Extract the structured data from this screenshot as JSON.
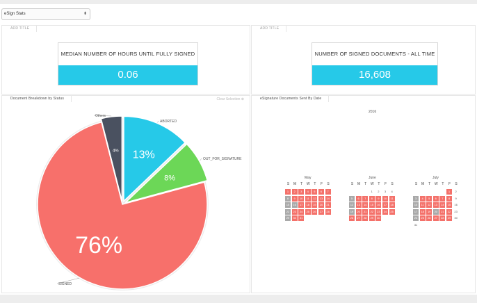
{
  "selector": {
    "value": "eSign Stats"
  },
  "panels": {
    "kpi_left": {
      "tab": "ADD TITLE",
      "label": "MEDIAN NUMBER OF HOURS UNTIL FULLY SIGNED",
      "value": "0.06",
      "accent": "#26c9e8"
    },
    "kpi_right": {
      "tab": "ADD TITLE",
      "label": "NUMBER OF SIGNED DOCUMENTS - ALL TIME",
      "value": "16,608",
      "accent": "#26c9e8"
    },
    "pie": {
      "tab": "Document Breakdown by Status",
      "clear_selection": "Clear Selection"
    },
    "calendar": {
      "tab": "eSignature Documents Sent By Date",
      "year": "2016"
    }
  },
  "chart_data": {
    "type": "pie",
    "slices": [
      {
        "name": "ABORTED",
        "value": 13,
        "label": "13%",
        "color": "#26c9e8"
      },
      {
        "name": "OUT_FOR_SIGNATURE",
        "value": 8,
        "label": "8%",
        "color": "#6cd757"
      },
      {
        "name": "SIGNED",
        "value": 76,
        "label": "76%",
        "color": "#f7706b"
      },
      {
        "name": "Others",
        "value": 4,
        "label": "4%",
        "color": "#4a5160"
      }
    ]
  },
  "calendar": {
    "dow": [
      "S",
      "M",
      "T",
      "W",
      "T",
      "F",
      "S"
    ],
    "months": [
      {
        "name": "May",
        "start_dow": 0,
        "days": 31,
        "status": {
          "1": "s",
          "2": "s",
          "3": "s",
          "4": "s",
          "5": "s",
          "6": "s",
          "7": "s",
          "8": "g",
          "9": "s",
          "10": "s",
          "11": "s",
          "12": "s",
          "13": "s",
          "14": "s",
          "15": "g",
          "16": "g",
          "17": "s",
          "18": "s",
          "19": "s",
          "20": "s",
          "21": "s",
          "22": "g",
          "23": "s",
          "24": "s",
          "25": "s",
          "26": "s",
          "27": "s",
          "28": "s",
          "29": "g",
          "30": "s",
          "31": "s"
        }
      },
      {
        "name": "June",
        "start_dow": 3,
        "days": 30,
        "status": {
          "5": "g",
          "6": "s",
          "7": "s",
          "8": "s",
          "9": "s",
          "10": "s",
          "11": "s",
          "12": "g",
          "13": "s",
          "14": "s",
          "15": "s",
          "16": "s",
          "17": "s",
          "18": "s",
          "19": "g",
          "20": "s",
          "21": "s",
          "22": "s",
          "23": "s",
          "24": "s",
          "25": "s",
          "26": "s",
          "27": "s",
          "28": "s",
          "29": "s",
          "30": "s"
        }
      },
      {
        "name": "July",
        "start_dow": 5,
        "days": 31,
        "status": {
          "1": "s",
          "3": "g",
          "4": "s",
          "5": "s",
          "6": "s",
          "7": "s",
          "8": "s",
          "10": "g",
          "11": "s",
          "12": "s",
          "13": "s",
          "14": "s",
          "15": "s",
          "17": "g",
          "18": "s",
          "19": "s",
          "20": "g",
          "21": "s",
          "22": "s",
          "24": "g",
          "25": "s",
          "26": "s",
          "27": "s",
          "28": "s",
          "29": "s"
        }
      }
    ]
  }
}
